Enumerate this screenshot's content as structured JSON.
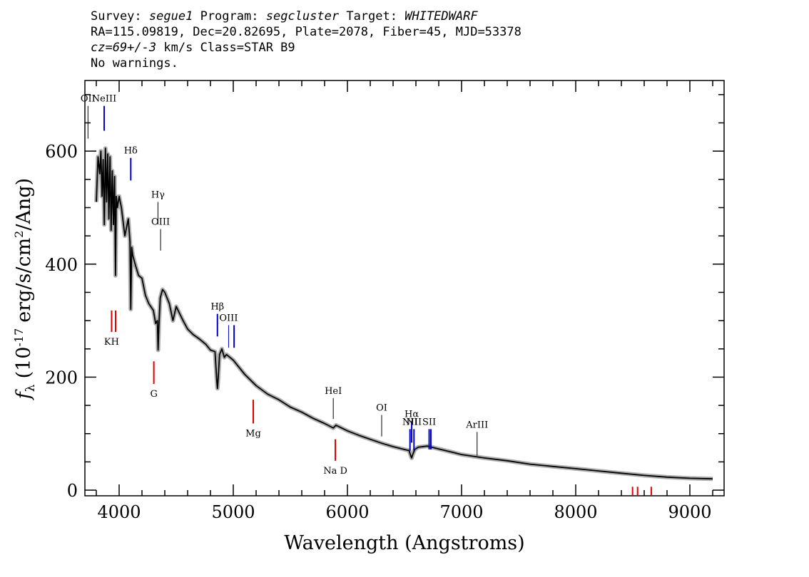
{
  "header": {
    "survey_label": "Survey:",
    "survey": "segue1",
    "program_label": "Program:",
    "program": "segcluster",
    "target_label": "Target:",
    "target": "WHITEDWARF",
    "line2": "RA=115.09819, Dec=20.82695, Plate=2078, Fiber=45, MJD=53378",
    "cz_value": "cz=69+/-3",
    "cz_units": "km/s",
    "class_text": "Class=STAR B9",
    "warnings": "No warnings."
  },
  "chart_data": {
    "type": "line",
    "title": "",
    "xlabel": "Wavelength (Angstroms)",
    "ylabel_text": "(10",
    "ylabel_exp": "-17",
    "ylabel_units": "erg/s/cm",
    "ylabel_sq": "2",
    "ylabel_tail": "/Ang)",
    "ylabel_symbol": "f",
    "ylabel_sub": "λ",
    "xlim": [
      3700,
      9300
    ],
    "ylim": [
      -10,
      725
    ],
    "grid": false,
    "x_ticks": [
      4000,
      5000,
      6000,
      7000,
      8000,
      9000
    ],
    "x_tick_labels": [
      "4000",
      "5000",
      "6000",
      "7000",
      "8000",
      "9000"
    ],
    "y_ticks": [
      0,
      200,
      400,
      600
    ],
    "y_tick_labels": [
      "0",
      "200",
      "400",
      "600"
    ],
    "series": [
      {
        "color": "#000000",
        "band_color": "#b0b0b0",
        "x": [
          3800,
          3815,
          3830,
          3840,
          3850,
          3860,
          3870,
          3880,
          3890,
          3900,
          3910,
          3920,
          3930,
          3940,
          3950,
          3960,
          3968,
          3975,
          3985,
          4000,
          4020,
          4050,
          4080,
          4095,
          4102,
          4110,
          4120,
          4140,
          4170,
          4200,
          4230,
          4260,
          4300,
          4320,
          4335,
          4341,
          4348,
          4360,
          4380,
          4400,
          4440,
          4471,
          4500,
          4560,
          4600,
          4650,
          4700,
          4760,
          4800,
          4840,
          4855,
          4861,
          4867,
          4880,
          4900,
          4922,
          4940,
          5000,
          5100,
          5200,
          5300,
          5400,
          5500,
          5600,
          5700,
          5800,
          5876,
          5900,
          6000,
          6100,
          6200,
          6300,
          6400,
          6500,
          6540,
          6556,
          6563,
          6570,
          6590,
          6620,
          6700,
          6800,
          6900,
          7000,
          7200,
          7400,
          7600,
          7800,
          8000,
          8200,
          8400,
          8600,
          8800,
          9000,
          9200
        ],
        "y": [
          510,
          590,
          560,
          600,
          520,
          585,
          470,
          605,
          510,
          595,
          480,
          590,
          460,
          565,
          470,
          555,
          380,
          520,
          500,
          520,
          500,
          450,
          480,
          440,
          320,
          430,
          415,
          400,
          380,
          375,
          345,
          330,
          318,
          295,
          300,
          248,
          290,
          340,
          355,
          350,
          330,
          300,
          325,
          300,
          285,
          275,
          268,
          258,
          248,
          245,
          195,
          180,
          195,
          240,
          250,
          235,
          240,
          230,
          205,
          185,
          170,
          160,
          147,
          138,
          127,
          118,
          110,
          115,
          105,
          97,
          90,
          83,
          77,
          72,
          70,
          60,
          57,
          62,
          72,
          76,
          78,
          73,
          68,
          63,
          57,
          52,
          46,
          42,
          38,
          34,
          30,
          26,
          23,
          21,
          20
        ]
      }
    ],
    "emission_lines": [
      {
        "label": "OII",
        "x": 3727,
        "y_top": 680,
        "y_bottom": 622,
        "color": "#000000"
      },
      {
        "label": "NeIII",
        "x": 3869,
        "y_top": 680,
        "y_bottom": 636,
        "color": "#0000c8"
      },
      {
        "label": "Hδ",
        "x": 4102,
        "y_top": 588,
        "y_bottom": 548,
        "color": "#0000c8"
      },
      {
        "label": "Hγ",
        "x": 4340,
        "y_top": 510,
        "y_bottom": 470,
        "color": "#000000"
      },
      {
        "label": "OIII",
        "x": 4363,
        "y_top": 462,
        "y_bottom": 424,
        "color": "#000000"
      },
      {
        "label": "Hβ",
        "x": 4861,
        "y_top": 312,
        "y_bottom": 272,
        "color": "#0000c8"
      },
      {
        "label": "OIII",
        "x": 4959,
        "y_top": 292,
        "y_bottom": 252
      },
      {
        "label": "",
        "x": 5007,
        "y_top": 292,
        "y_bottom": 252,
        "color": "#0000c8"
      },
      {
        "label": "HeI",
        "x": 5876,
        "y_top": 163,
        "y_bottom": 126,
        "color": "#000000"
      },
      {
        "label": "OI",
        "x": 6300,
        "y_top": 133,
        "y_bottom": 95,
        "color": "#000000"
      },
      {
        "label": "NII",
        "x": 6548,
        "y_top": 108,
        "y_bottom": 70,
        "color": "#0000c8"
      },
      {
        "label": "Hα",
        "x": 6563,
        "y_top": 122,
        "y_bottom": 84,
        "color": "#0000c8"
      },
      {
        "label": "NII",
        "x": 6583,
        "y_top": 108,
        "y_bottom": 70,
        "color": "#0000c8"
      },
      {
        "label": "SII",
        "x": 6716,
        "y_top": 108,
        "y_bottom": 72,
        "color": "#0000c8"
      },
      {
        "label": "",
        "x": 6731,
        "y_top": 108,
        "y_bottom": 72,
        "color": "#0000c8"
      },
      {
        "label": "ArIII",
        "x": 7136,
        "y_top": 103,
        "y_bottom": 61,
        "color": "#000000"
      }
    ],
    "absorption_lines": [
      {
        "label": "KH",
        "x": 3934,
        "y_top": 318,
        "y_bottom": 280,
        "color": "#e00000"
      },
      {
        "label": "",
        "x": 3969,
        "y_top": 318,
        "y_bottom": 280,
        "color": "#e00000"
      },
      {
        "label": "G",
        "x": 4304,
        "y_top": 228,
        "y_bottom": 188,
        "color": "#e00000"
      },
      {
        "label": "Mg",
        "x": 5175,
        "y_top": 160,
        "y_bottom": 118,
        "color": "#e00000"
      },
      {
        "label": "Na D",
        "x": 5894,
        "y_top": 90,
        "y_bottom": 52,
        "color": "#e00000"
      },
      {
        "label": "",
        "x": 8498,
        "y_top": 6,
        "y_bottom": -10,
        "color": "#e00000"
      },
      {
        "label": "",
        "x": 8542,
        "y_top": 6,
        "y_bottom": -10,
        "color": "#e00000"
      },
      {
        "label": "",
        "x": 8662,
        "y_top": 6,
        "y_bottom": -10,
        "color": "#e00000"
      }
    ]
  }
}
